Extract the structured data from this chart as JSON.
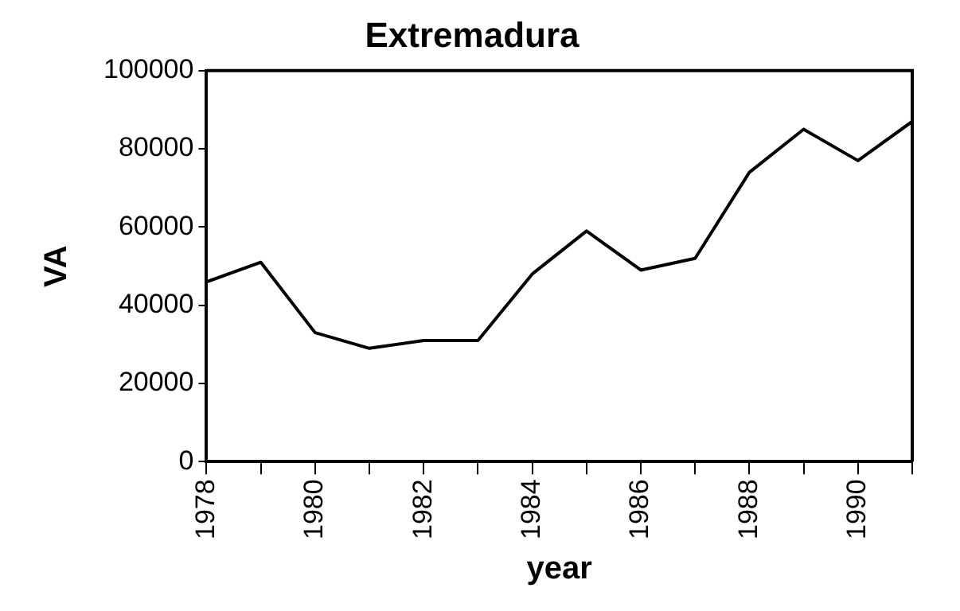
{
  "chart_data": {
    "type": "line",
    "title": "Extremadura",
    "xlabel": "year",
    "ylabel": "VA",
    "x": [
      1978,
      1979,
      1980,
      1981,
      1982,
      1983,
      1984,
      1985,
      1986,
      1987,
      1988,
      1989,
      1990,
      1991
    ],
    "series": [
      {
        "color": "#000000",
        "values": [
          46000,
          51000,
          33000,
          29000,
          31000,
          31000,
          48000,
          59000,
          49000,
          52000,
          74000,
          85000,
          77000,
          87000
        ]
      }
    ],
    "xlim": [
      1978,
      1991
    ],
    "xticks": [
      1978,
      {
        "value": 1979,
        "label": null
      },
      1980,
      {
        "value": 1981,
        "label": null
      },
      1982,
      {
        "value": 1983,
        "label": null
      },
      1984,
      {
        "value": 1985,
        "label": null
      },
      1986,
      {
        "value": 1987,
        "label": null
      },
      1988,
      {
        "value": 1989,
        "label": null
      },
      1990,
      {
        "value": 1991,
        "label": null
      }
    ],
    "ylim": [
      0,
      100000
    ],
    "yticks": [
      0,
      20000,
      40000,
      60000,
      80000,
      100000
    ],
    "grid": false,
    "legend": false,
    "marker": "none",
    "line_style": "solid"
  }
}
